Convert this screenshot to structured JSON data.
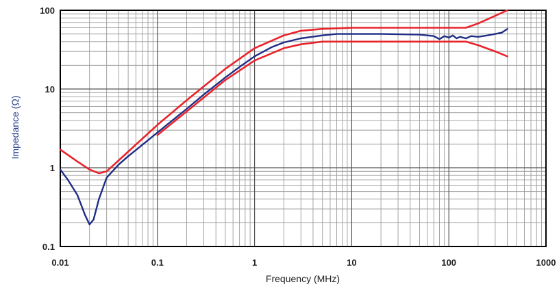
{
  "chart_data": {
    "type": "line",
    "title": "",
    "xlabel": "Frequency (MHz)",
    "ylabel": "Impedance (Ω)",
    "xscale": "log",
    "yscale": "log",
    "xlim": [
      0.01,
      1000
    ],
    "ylim": [
      0.1,
      100
    ],
    "grid": true,
    "legend": "none",
    "x_tick_labels": [
      "0.01",
      "0.1",
      "1",
      "10",
      "100",
      "1000"
    ],
    "y_tick_labels": [
      "0.1",
      "1",
      "10",
      "100"
    ],
    "series": [
      {
        "color": "#1f2d86",
        "points": [
          [
            0.01,
            0.95
          ],
          [
            0.012,
            0.7
          ],
          [
            0.015,
            0.45
          ],
          [
            0.018,
            0.25
          ],
          [
            0.02,
            0.19
          ],
          [
            0.022,
            0.22
          ],
          [
            0.025,
            0.4
          ],
          [
            0.03,
            0.75
          ],
          [
            0.04,
            1.1
          ],
          [
            0.05,
            1.4
          ],
          [
            0.07,
            1.95
          ],
          [
            0.1,
            2.8
          ],
          [
            0.15,
            4.2
          ],
          [
            0.2,
            5.6
          ],
          [
            0.3,
            8.5
          ],
          [
            0.5,
            14
          ],
          [
            0.7,
            19
          ],
          [
            1,
            26
          ],
          [
            1.5,
            34
          ],
          [
            2,
            39
          ],
          [
            3,
            44
          ],
          [
            5,
            48
          ],
          [
            7,
            50
          ],
          [
            10,
            50
          ],
          [
            20,
            50
          ],
          [
            50,
            49
          ],
          [
            70,
            47
          ],
          [
            80,
            43
          ],
          [
            90,
            47
          ],
          [
            100,
            45
          ],
          [
            110,
            48
          ],
          [
            120,
            44
          ],
          [
            130,
            46
          ],
          [
            150,
            44
          ],
          [
            170,
            47
          ],
          [
            200,
            46
          ],
          [
            250,
            48
          ],
          [
            300,
            50
          ],
          [
            350,
            52
          ],
          [
            400,
            58
          ]
        ]
      },
      {
        "color": "#e8242b",
        "points": [
          [
            0.01,
            1.7
          ],
          [
            0.015,
            1.2
          ],
          [
            0.02,
            0.95
          ],
          [
            0.025,
            0.85
          ],
          [
            0.03,
            0.9
          ],
          [
            0.05,
            1.6
          ],
          [
            0.1,
            3.5
          ],
          [
            0.2,
            7.2
          ],
          [
            0.5,
            18
          ],
          [
            1,
            33
          ],
          [
            2,
            48
          ],
          [
            3,
            55
          ],
          [
            5,
            58
          ],
          [
            10,
            60
          ],
          [
            50,
            60
          ],
          [
            100,
            60
          ],
          [
            150,
            60
          ],
          [
            200,
            68
          ],
          [
            300,
            85
          ],
          [
            400,
            100
          ]
        ]
      },
      {
        "color": "#e8242b",
        "points": [
          [
            0.1,
            2.6
          ],
          [
            0.2,
            5.2
          ],
          [
            0.5,
            13
          ],
          [
            1,
            23
          ],
          [
            2,
            33
          ],
          [
            3,
            37
          ],
          [
            5,
            40
          ],
          [
            10,
            40
          ],
          [
            50,
            40
          ],
          [
            100,
            40
          ],
          [
            150,
            40
          ],
          [
            200,
            36
          ],
          [
            300,
            30
          ],
          [
            400,
            26
          ]
        ]
      }
    ]
  }
}
